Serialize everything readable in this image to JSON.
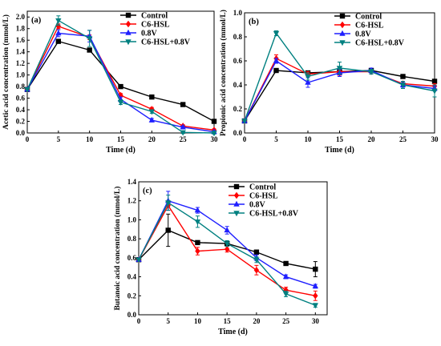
{
  "colors": {
    "control": "#000000",
    "c6hsl": "#ff0000",
    "v08": "#1f1fff",
    "combo": "#008080"
  },
  "chart_data": [
    {
      "id": "a",
      "type": "line",
      "panel_label": "(a)",
      "xlabel": "Time (d)",
      "ylabel": "Acetic acid concentration (mmol/L)",
      "xlim": [
        0,
        30
      ],
      "ylim": [
        0,
        2.1
      ],
      "xticks": [
        "0",
        "5",
        "10",
        "15",
        "20",
        "25",
        "30"
      ],
      "yticks": [
        "0.0",
        "0.2",
        "0.4",
        "0.6",
        "0.8",
        "1.0",
        "1.2",
        "1.4",
        "1.6",
        "1.8",
        "2.0"
      ],
      "x": [
        0,
        5,
        10,
        15,
        20,
        25,
        30
      ],
      "legend_position": "top-right",
      "grid": false,
      "series": [
        {
          "name": "Control",
          "marker": "square",
          "values": [
            0.75,
            1.58,
            1.43,
            0.8,
            0.62,
            0.49,
            0.2
          ],
          "errors": [
            0,
            0.02,
            0.02,
            0.02,
            0.02,
            0.02,
            0.02
          ]
        },
        {
          "name": "C6-HSL",
          "marker": "diamond",
          "values": [
            0.75,
            1.84,
            1.65,
            0.65,
            0.41,
            0.12,
            0.05
          ],
          "errors": [
            0,
            0.04,
            0.04,
            0.03,
            0.03,
            0.02,
            0.02
          ]
        },
        {
          "name": "0.8V",
          "marker": "triangle",
          "values": [
            0.75,
            1.72,
            1.67,
            0.58,
            0.22,
            0.1,
            0.02
          ],
          "errors": [
            0,
            0.06,
            0.1,
            0.04,
            0.03,
            0.02,
            0.02
          ]
        },
        {
          "name": "C6-HSL+0.8V",
          "marker": "tridown",
          "values": [
            0.75,
            1.94,
            1.63,
            0.53,
            0.37,
            0.01,
            0.0
          ],
          "errors": [
            0,
            0.08,
            0.14,
            0.04,
            0.03,
            0.02,
            0.02
          ]
        }
      ]
    },
    {
      "id": "b",
      "type": "line",
      "panel_label": "(b)",
      "xlabel": "Time (d)",
      "ylabel": "Propionic acid concentration (mmol/L)",
      "xlim": [
        0,
        30
      ],
      "ylim": [
        0,
        1.0
      ],
      "xticks": [
        "0",
        "5",
        "10",
        "15",
        "20",
        "25",
        "30"
      ],
      "yticks": [
        "0.0",
        "0.2",
        "0.4",
        "0.6",
        "0.8",
        "1.0"
      ],
      "x": [
        0,
        5,
        10,
        15,
        20,
        25,
        30
      ],
      "legend_position": "top-right",
      "grid": false,
      "series": [
        {
          "name": "Control",
          "marker": "square",
          "values": [
            0.1,
            0.52,
            0.5,
            0.51,
            0.52,
            0.47,
            0.43
          ],
          "errors": [
            0,
            0.01,
            0.01,
            0.01,
            0.01,
            0.01,
            0.01
          ]
        },
        {
          "name": "C6-HSL",
          "marker": "diamond",
          "values": [
            0.1,
            0.62,
            0.49,
            0.51,
            0.51,
            0.41,
            0.39
          ],
          "errors": [
            0,
            0.03,
            0.02,
            0.03,
            0.02,
            0.02,
            0.02
          ]
        },
        {
          "name": "0.8V",
          "marker": "triangle",
          "values": [
            0.1,
            0.6,
            0.42,
            0.5,
            0.52,
            0.4,
            0.37
          ],
          "errors": [
            0,
            0.02,
            0.04,
            0.03,
            0.02,
            0.02,
            0.02
          ]
        },
        {
          "name": "C6-HSL+0.8V",
          "marker": "tridown",
          "values": [
            0.1,
            0.83,
            0.47,
            0.54,
            0.51,
            0.4,
            0.35
          ],
          "errors": [
            0,
            0.02,
            0.03,
            0.05,
            0.02,
            0.03,
            0.05
          ]
        }
      ]
    },
    {
      "id": "c",
      "type": "line",
      "panel_label": "(c)",
      "xlabel": "Time (d)",
      "ylabel": "Butanoic acid concentration (mmol/L)",
      "xlim": [
        0,
        32
      ],
      "ylim": [
        0,
        1.4
      ],
      "xticks": [
        "0",
        "5",
        "10",
        "15",
        "20",
        "25",
        "30"
      ],
      "yticks": [
        "0.0",
        "0.2",
        "0.4",
        "0.6",
        "0.8",
        "1.0",
        "1.2",
        "1.4"
      ],
      "x": [
        0,
        5,
        10,
        15,
        20,
        25,
        30
      ],
      "legend_position": "top-right",
      "grid": false,
      "series": [
        {
          "name": "Control",
          "marker": "square",
          "values": [
            0.58,
            0.89,
            0.76,
            0.75,
            0.66,
            0.54,
            0.48
          ],
          "errors": [
            0,
            0.17,
            0.02,
            0.02,
            0.02,
            0.02,
            0.08
          ]
        },
        {
          "name": "C6-HSL",
          "marker": "diamond",
          "values": [
            0.58,
            1.15,
            0.67,
            0.69,
            0.47,
            0.26,
            0.2
          ],
          "errors": [
            0,
            0.05,
            0.04,
            0.03,
            0.05,
            0.03,
            0.05
          ]
        },
        {
          "name": "0.8V",
          "marker": "triangle",
          "values": [
            0.58,
            1.2,
            1.1,
            0.89,
            0.6,
            0.4,
            0.3
          ],
          "errors": [
            0,
            0.1,
            0.03,
            0.04,
            0.03,
            0.02,
            0.02
          ]
        },
        {
          "name": "C6-HSL+0.8V",
          "marker": "tridown",
          "values": [
            0.58,
            1.18,
            0.98,
            0.75,
            0.58,
            0.22,
            0.1
          ],
          "errors": [
            0,
            0.08,
            0.06,
            0.03,
            0.03,
            0.03,
            0.02
          ]
        }
      ]
    }
  ]
}
